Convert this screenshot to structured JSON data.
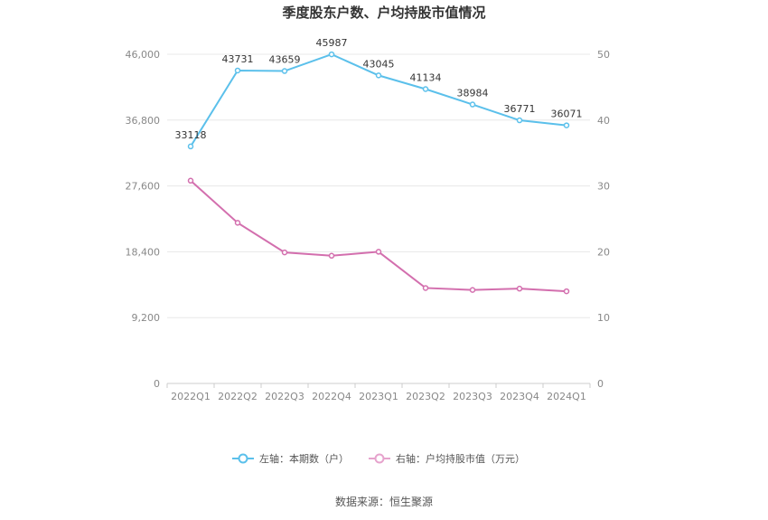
{
  "chart_data": {
    "type": "line",
    "title": "季度股东户数、户均持股市值情况",
    "categories": [
      "2022Q1",
      "2022Q2",
      "2022Q3",
      "2022Q4",
      "2023Q1",
      "2023Q2",
      "2023Q3",
      "2023Q4",
      "2024Q1"
    ],
    "left_axis": {
      "min": 0,
      "max": 46000,
      "ticks": [
        "0",
        "9,200",
        "18,400",
        "27,600",
        "36,800",
        "46,000"
      ]
    },
    "right_axis": {
      "min": 0,
      "max": 50,
      "ticks": [
        "0",
        "10",
        "20",
        "30",
        "40",
        "50"
      ]
    },
    "series": [
      {
        "name": "左轴：本期数（户）",
        "axis": "left",
        "color": "#5bc0eb",
        "values": [
          33118,
          43731,
          43659,
          45987,
          43045,
          41134,
          38984,
          36771,
          36071
        ],
        "labels": [
          "33118",
          "43731",
          "43659",
          "45987",
          "43045",
          "41134",
          "38984",
          "36771",
          "36071"
        ]
      },
      {
        "name": "右轴：户均持股市值（万元）",
        "axis": "right",
        "color": "#d36fae",
        "values": [
          30.8,
          24.4,
          19.9,
          19.4,
          20.0,
          14.5,
          14.2,
          14.4,
          14.0
        ]
      }
    ],
    "grid": true,
    "legend_position": "bottom-center",
    "source": "数据来源：恒生聚源"
  }
}
